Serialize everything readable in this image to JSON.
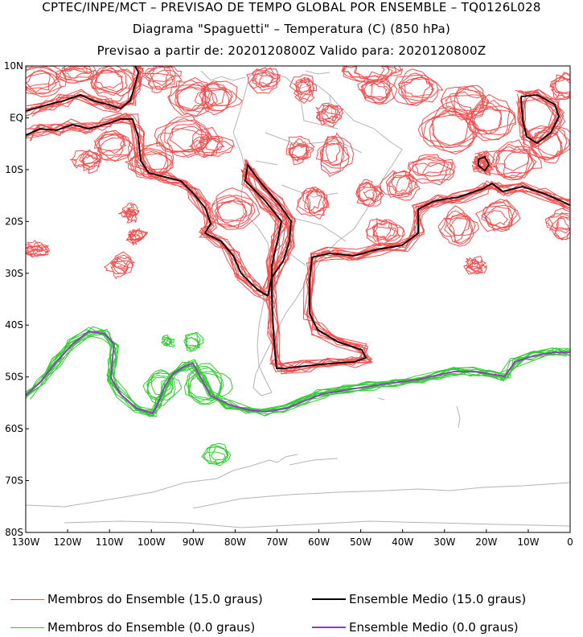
{
  "header": {
    "line1": "CPTEC/INPE/MCT – PREVISAO DE TEMPO GLOBAL POR ENSEMBLE – TQ0126L028",
    "line2": "Diagrama \"Spaguetti\" – Temperatura (C) (850 hPa)",
    "line3": "Previsao a partir de: 2020120800Z  Valido para: 2020120800Z"
  },
  "map": {
    "lat_labels": [
      "10N",
      "EQ",
      "10S",
      "20S",
      "30S",
      "40S",
      "50S",
      "60S",
      "70S",
      "80S"
    ],
    "lon_labels": [
      "130W",
      "120W",
      "110W",
      "100W",
      "90W",
      "80W",
      "70W",
      "60W",
      "50W",
      "40W",
      "30W",
      "20W",
      "10W",
      "0"
    ],
    "colors": {
      "members_15": "#f05050",
      "mean_15": "#000000",
      "members_0": "#33cc33",
      "mean_0": "#9933cc",
      "coastline": "#b4b4b4"
    }
  },
  "legend": {
    "members_15_label": "Membros do Ensemble (15.0 graus)",
    "mean_15_label": "Ensemble Medio (15.0 graus)",
    "members_0_label": "Membros do Ensemble (0.0 graus)",
    "mean_0_label": "Ensemble Medio (0.0 graus)"
  }
}
